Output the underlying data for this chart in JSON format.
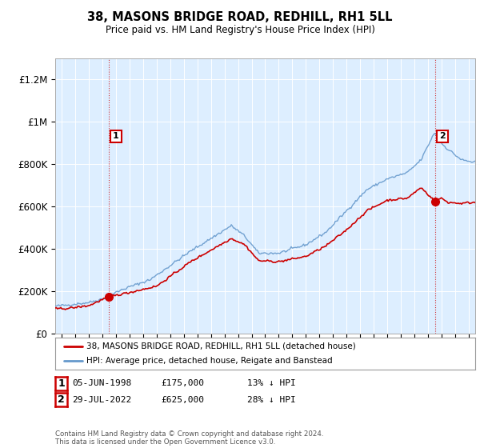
{
  "title": "38, MASONS BRIDGE ROAD, REDHILL, RH1 5LL",
  "subtitle": "Price paid vs. HM Land Registry's House Price Index (HPI)",
  "legend_line1": "38, MASONS BRIDGE ROAD, REDHILL, RH1 5LL (detached house)",
  "legend_line2": "HPI: Average price, detached house, Reigate and Banstead",
  "footer": "Contains HM Land Registry data © Crown copyright and database right 2024.\nThis data is licensed under the Open Government Licence v3.0.",
  "sale1_date": "05-JUN-1998",
  "sale1_price": "£175,000",
  "sale1_note": "13% ↓ HPI",
  "sale2_date": "29-JUL-2022",
  "sale2_price": "£625,000",
  "sale2_note": "28% ↓ HPI",
  "red_color": "#cc0000",
  "blue_color": "#6699cc",
  "plot_bg_color": "#ddeeff",
  "background_color": "#ffffff",
  "grid_color": "#ffffff",
  "ylim": [
    0,
    1300000
  ],
  "xlim_start": 1994.5,
  "xlim_end": 2025.5,
  "sale1_year": 1998.458,
  "sale2_year": 2022.542,
  "sale1_price_val": 175000,
  "sale2_price_val": 625000,
  "hpi_knots_x": [
    1994.5,
    1995.0,
    1997.0,
    1998.0,
    1999.5,
    2001.5,
    2004.5,
    2007.5,
    2008.5,
    2009.5,
    2011.0,
    2013.0,
    2014.5,
    2016.0,
    2017.5,
    2019.0,
    2020.5,
    2021.5,
    2022.5,
    2023.0,
    2023.5,
    2024.5,
    2025.3
  ],
  "hpi_knots_y": [
    130000,
    133000,
    148000,
    165000,
    210000,
    255000,
    390000,
    510000,
    460000,
    380000,
    380000,
    420000,
    480000,
    580000,
    680000,
    730000,
    760000,
    820000,
    950000,
    900000,
    870000,
    820000,
    810000
  ],
  "red_knots_x": [
    1994.5,
    1995.5,
    1997.0,
    1998.458,
    2000.0,
    2002.0,
    2004.5,
    2007.5,
    2008.5,
    2009.5,
    2011.0,
    2013.0,
    2014.5,
    2016.0,
    2017.5,
    2019.0,
    2020.5,
    2021.5,
    2022.542,
    2023.0,
    2023.5,
    2024.5,
    2025.3
  ],
  "red_knots_y": [
    118000,
    120000,
    133000,
    175000,
    195000,
    225000,
    340000,
    450000,
    420000,
    345000,
    340000,
    365000,
    415000,
    490000,
    580000,
    630000,
    640000,
    690000,
    625000,
    640000,
    620000,
    615000,
    620000
  ]
}
